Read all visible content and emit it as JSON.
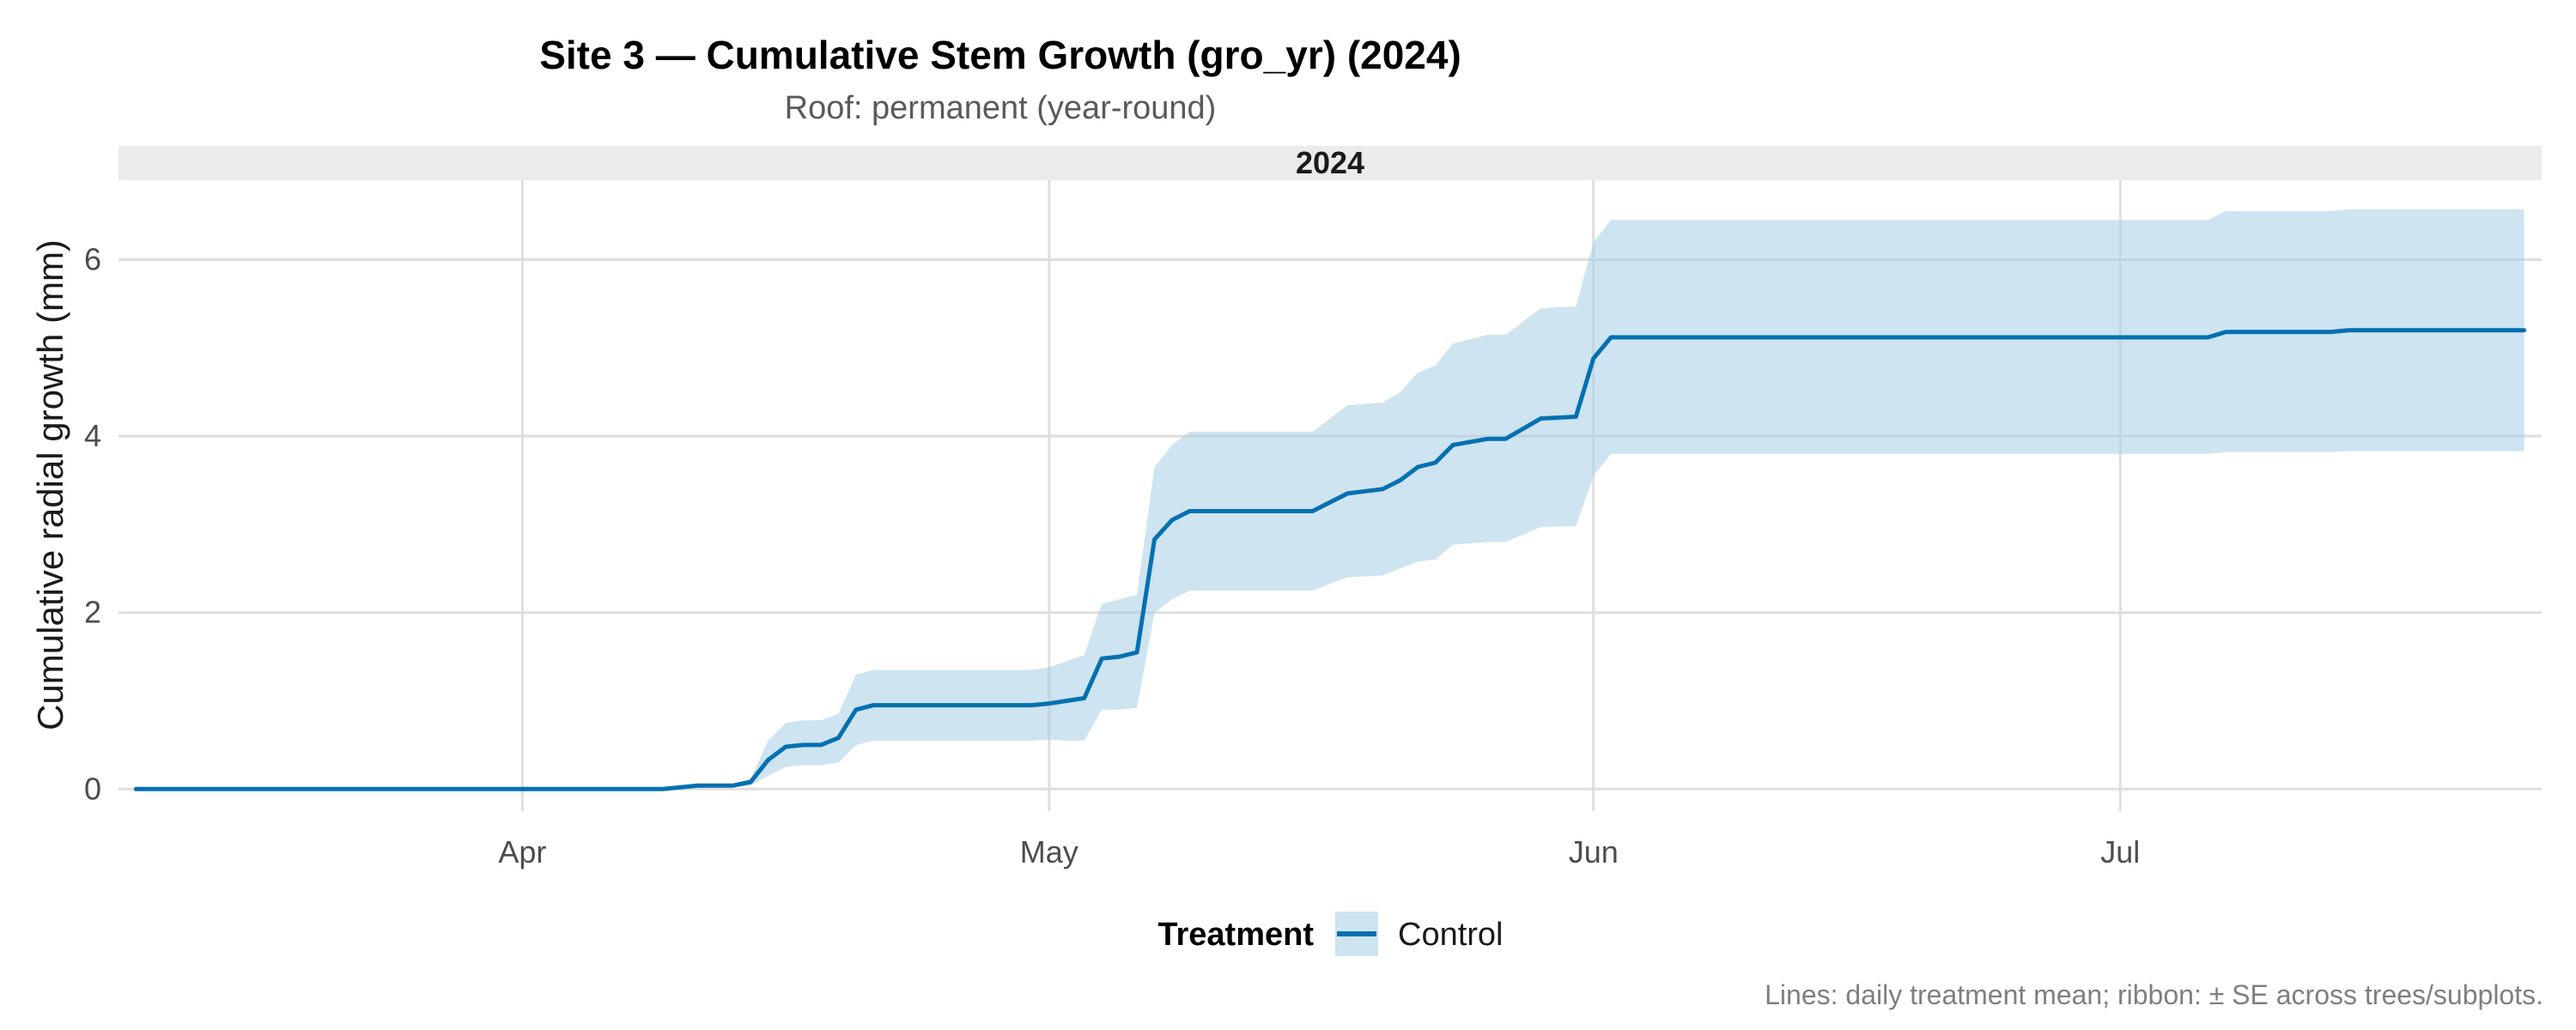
{
  "chart_data": {
    "type": "line",
    "title": "Site 3 — Cumulative Stem Growth (gro_yr) (2024)",
    "subtitle": "Roof: permanent (year-round)",
    "facet_label": "2024",
    "xlabel": "",
    "ylabel": "Cumulative radial growth (mm)",
    "x_ticks": [
      {
        "label": "Apr",
        "date": "2024-04-01"
      },
      {
        "label": "May",
        "date": "2024-05-01"
      },
      {
        "label": "Jun",
        "date": "2024-06-01"
      },
      {
        "label": "Jul",
        "date": "2024-07-01"
      }
    ],
    "y_ticks": [
      0,
      2,
      4,
      6
    ],
    "xlim": [
      "2024-03-09",
      "2024-07-25"
    ],
    "ylim": [
      -0.25,
      6.9
    ],
    "grid": true,
    "legend": {
      "title": "Treatment",
      "position": "bottom",
      "entries": [
        "Control"
      ]
    },
    "caption": "Lines: daily treatment mean; ribbon: ± SE across trees/subplots.",
    "colors": {
      "line": "#0570b0",
      "ribbon": "#a6cee3",
      "strip": "#ebebeb",
      "grid": "#dedede"
    },
    "series": [
      {
        "name": "Control",
        "points": [
          {
            "date": "2024-03-10",
            "y": 0.0,
            "lo": 0.0,
            "hi": 0.0
          },
          {
            "date": "2024-04-09",
            "y": 0.0,
            "lo": 0.0,
            "hi": 0.0
          },
          {
            "date": "2024-04-11",
            "y": 0.04,
            "lo": 0.02,
            "hi": 0.06
          },
          {
            "date": "2024-04-13",
            "y": 0.04,
            "lo": 0.02,
            "hi": 0.06
          },
          {
            "date": "2024-04-14",
            "y": 0.08,
            "lo": 0.04,
            "hi": 0.12
          },
          {
            "date": "2024-04-15",
            "y": 0.33,
            "lo": 0.15,
            "hi": 0.55
          },
          {
            "date": "2024-04-16",
            "y": 0.48,
            "lo": 0.25,
            "hi": 0.75
          },
          {
            "date": "2024-04-17",
            "y": 0.5,
            "lo": 0.27,
            "hi": 0.78
          },
          {
            "date": "2024-04-18",
            "y": 0.5,
            "lo": 0.27,
            "hi": 0.78
          },
          {
            "date": "2024-04-19",
            "y": 0.58,
            "lo": 0.3,
            "hi": 0.85
          },
          {
            "date": "2024-04-20",
            "y": 0.9,
            "lo": 0.5,
            "hi": 1.3
          },
          {
            "date": "2024-04-21",
            "y": 0.95,
            "lo": 0.55,
            "hi": 1.35
          },
          {
            "date": "2024-04-30",
            "y": 0.95,
            "lo": 0.55,
            "hi": 1.35
          },
          {
            "date": "2024-05-01",
            "y": 0.97,
            "lo": 0.56,
            "hi": 1.38
          },
          {
            "date": "2024-05-02",
            "y": 1.0,
            "lo": 0.55,
            "hi": 1.45
          },
          {
            "date": "2024-05-03",
            "y": 1.03,
            "lo": 0.55,
            "hi": 1.52
          },
          {
            "date": "2024-05-04",
            "y": 1.48,
            "lo": 0.9,
            "hi": 2.1
          },
          {
            "date": "2024-05-05",
            "y": 1.5,
            "lo": 0.9,
            "hi": 2.15
          },
          {
            "date": "2024-05-06",
            "y": 1.55,
            "lo": 0.92,
            "hi": 2.2
          },
          {
            "date": "2024-05-07",
            "y": 2.83,
            "lo": 2.0,
            "hi": 3.65
          },
          {
            "date": "2024-05-08",
            "y": 3.05,
            "lo": 2.15,
            "hi": 3.9
          },
          {
            "date": "2024-05-09",
            "y": 3.15,
            "lo": 2.25,
            "hi": 4.05
          },
          {
            "date": "2024-05-16",
            "y": 3.15,
            "lo": 2.25,
            "hi": 4.05
          },
          {
            "date": "2024-05-18",
            "y": 3.35,
            "lo": 2.4,
            "hi": 4.35
          },
          {
            "date": "2024-05-20",
            "y": 3.4,
            "lo": 2.42,
            "hi": 4.38
          },
          {
            "date": "2024-05-21",
            "y": 3.5,
            "lo": 2.5,
            "hi": 4.5
          },
          {
            "date": "2024-05-22",
            "y": 3.65,
            "lo": 2.58,
            "hi": 4.72
          },
          {
            "date": "2024-05-23",
            "y": 3.7,
            "lo": 2.6,
            "hi": 4.8
          },
          {
            "date": "2024-05-24",
            "y": 3.9,
            "lo": 2.77,
            "hi": 5.05
          },
          {
            "date": "2024-05-26",
            "y": 3.97,
            "lo": 2.8,
            "hi": 5.15
          },
          {
            "date": "2024-05-27",
            "y": 3.97,
            "lo": 2.8,
            "hi": 5.15
          },
          {
            "date": "2024-05-29",
            "y": 4.2,
            "lo": 2.97,
            "hi": 5.45
          },
          {
            "date": "2024-05-31",
            "y": 4.22,
            "lo": 2.98,
            "hi": 5.47
          },
          {
            "date": "2024-06-01",
            "y": 4.88,
            "lo": 3.55,
            "hi": 6.2
          },
          {
            "date": "2024-06-02",
            "y": 5.12,
            "lo": 3.8,
            "hi": 6.45
          },
          {
            "date": "2024-07-06",
            "y": 5.12,
            "lo": 3.8,
            "hi": 6.45
          },
          {
            "date": "2024-07-07",
            "y": 5.18,
            "lo": 3.82,
            "hi": 6.55
          },
          {
            "date": "2024-07-13",
            "y": 5.18,
            "lo": 3.82,
            "hi": 6.55
          },
          {
            "date": "2024-07-14",
            "y": 5.2,
            "lo": 3.83,
            "hi": 6.57
          },
          {
            "date": "2024-07-24",
            "y": 5.2,
            "lo": 3.83,
            "hi": 6.57
          }
        ]
      }
    ]
  }
}
